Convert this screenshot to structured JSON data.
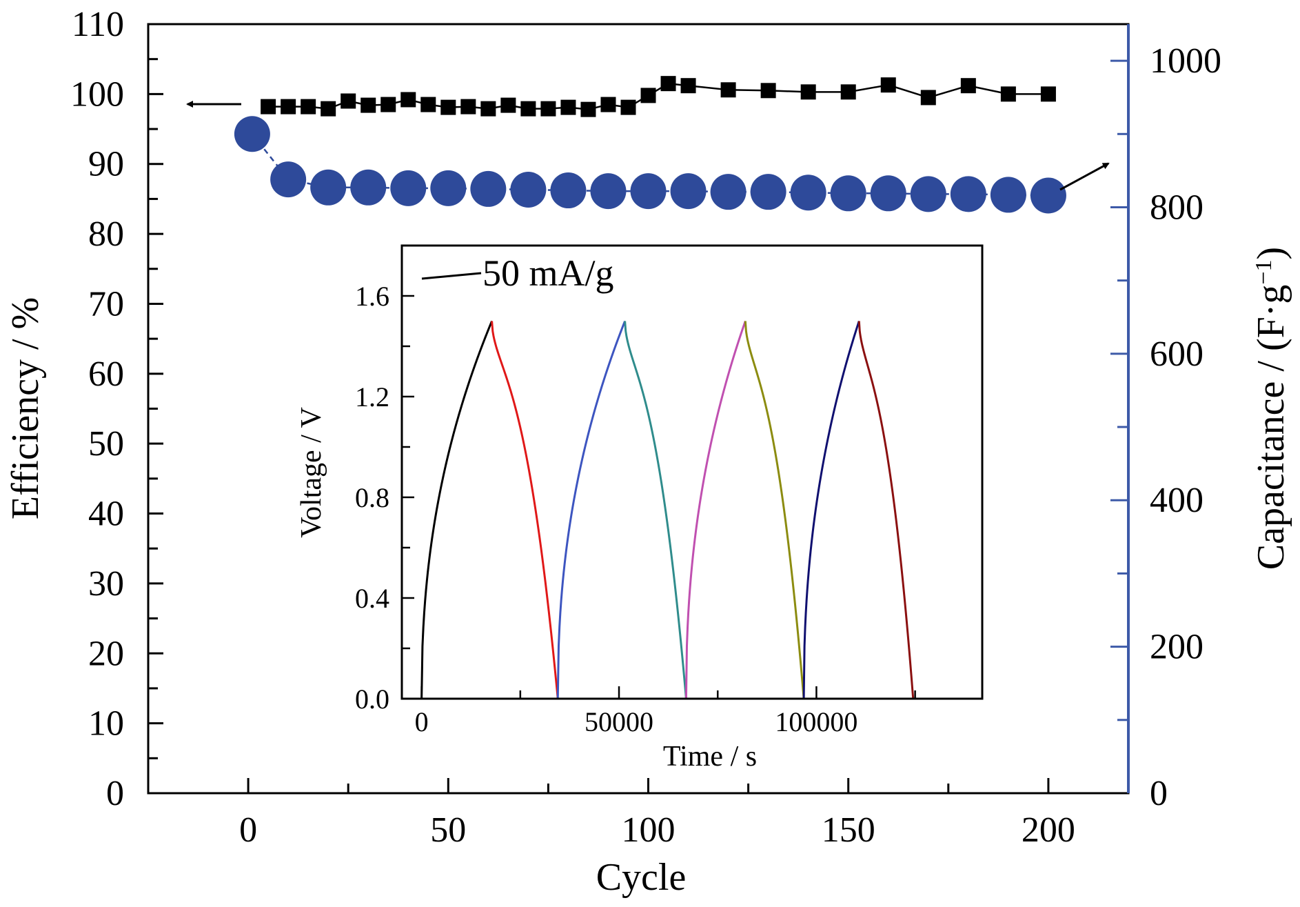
{
  "colors": {
    "efficiency": "#000000",
    "capacitance": "#2e4a9a",
    "right_axis": "#3d5aa8"
  },
  "chart_data": [
    {
      "type": "scatter",
      "xlabel": "Cycle",
      "ylabel_left": "Efficiency / %",
      "ylabel_right_base": "Capacitance / (F·g",
      "ylabel_right_sup": "−1",
      "ylabel_right_close": ")",
      "xlim": [
        -25,
        220
      ],
      "ylim_left": [
        0,
        110
      ],
      "ylim_right": [
        0,
        1050
      ],
      "x_ticks": [
        0,
        50,
        100,
        150,
        200
      ],
      "y_left_ticks": [
        0,
        10,
        20,
        30,
        40,
        50,
        60,
        70,
        80,
        90,
        100,
        110
      ],
      "y_right_ticks": [
        0,
        200,
        400,
        600,
        800,
        1000
      ],
      "x_tick_labels": [
        "0",
        "50",
        "100",
        "150",
        "200"
      ],
      "y_left_tick_labels": [
        "0",
        "10",
        "20",
        "30",
        "40",
        "50",
        "60",
        "70",
        "80",
        "90",
        "100",
        "110"
      ],
      "y_right_tick_labels": [
        "0",
        "200",
        "400",
        "600",
        "800",
        "1000"
      ],
      "series": [
        {
          "axis": "left",
          "marker": "square",
          "x": [
            5,
            10,
            15,
            20,
            25,
            30,
            35,
            40,
            45,
            50,
            55,
            60,
            65,
            70,
            75,
            80,
            85,
            90,
            95,
            100,
            105,
            110,
            120,
            130,
            140,
            150,
            160,
            170,
            180,
            190,
            200
          ],
          "y": [
            98.2,
            98.2,
            98.2,
            97.9,
            99.0,
            98.4,
            98.5,
            99.2,
            98.5,
            98.1,
            98.2,
            97.9,
            98.4,
            97.9,
            97.9,
            98.1,
            97.8,
            98.5,
            98.1,
            99.8,
            101.5,
            101.2,
            100.6,
            100.5,
            100.3,
            100.3,
            101.3,
            99.5,
            101.2,
            100.0,
            100.0
          ]
        },
        {
          "axis": "right",
          "marker": "circle",
          "x": [
            1,
            10,
            20,
            30,
            40,
            50,
            60,
            70,
            80,
            90,
            100,
            110,
            120,
            130,
            140,
            150,
            160,
            170,
            180,
            190,
            200
          ],
          "y": [
            900,
            838,
            827,
            827,
            826,
            826,
            825,
            824,
            823,
            822,
            822,
            822,
            821,
            821,
            820,
            819,
            819,
            818,
            818,
            817,
            816
          ]
        }
      ]
    },
    {
      "type": "line",
      "legend_label": "50 mA/g",
      "xlabel": "Time / s",
      "ylabel": "Voltage / V",
      "xlim": [
        -5000,
        142000
      ],
      "ylim": [
        0,
        1.8
      ],
      "x_ticks": [
        0,
        50000,
        100000
      ],
      "x_tick_labels": [
        "0",
        "50000",
        "100000"
      ],
      "y_ticks": [
        0.0,
        0.4,
        0.8,
        1.2,
        1.6
      ],
      "y_tick_labels": [
        "0.0",
        "0.4",
        "0.8",
        "1.2",
        "1.6"
      ],
      "segments": [
        {
          "kind": "charge",
          "start": 0,
          "end": 17800,
          "color": "#000000"
        },
        {
          "kind": "discharge",
          "start": 17800,
          "end": 34500,
          "color": "#e01818"
        },
        {
          "kind": "charge",
          "start": 34500,
          "end": 51500,
          "color": "#3d55c0"
        },
        {
          "kind": "discharge",
          "start": 51500,
          "end": 67000,
          "color": "#2f8c8c"
        },
        {
          "kind": "charge",
          "start": 67000,
          "end": 82000,
          "color": "#c050b0"
        },
        {
          "kind": "discharge",
          "start": 82000,
          "end": 96800,
          "color": "#8c8c10"
        },
        {
          "kind": "charge",
          "start": 96800,
          "end": 110800,
          "color": "#101070"
        },
        {
          "kind": "discharge",
          "start": 110800,
          "end": 124500,
          "color": "#8b1010"
        }
      ]
    }
  ]
}
